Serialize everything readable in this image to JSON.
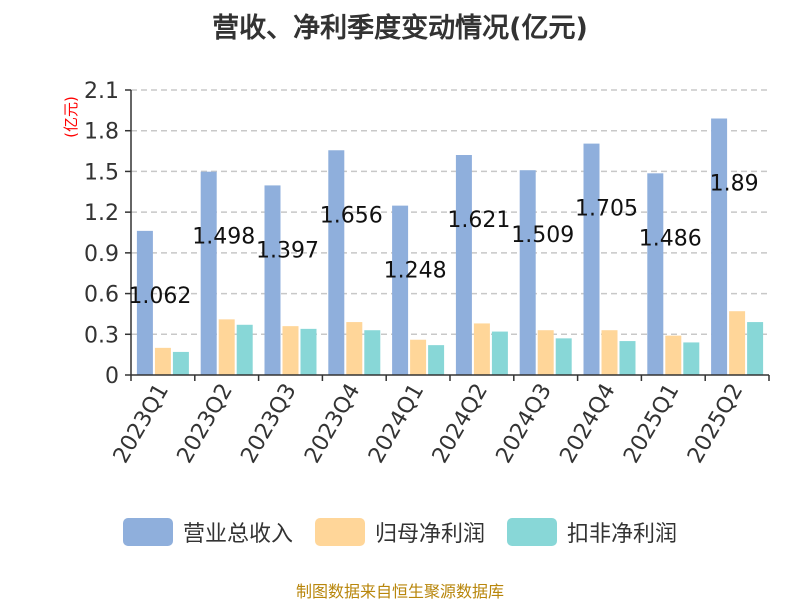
{
  "chart_data": {
    "type": "bar",
    "title": "营收、净利季度变动情况(亿元)",
    "ylabel": "(亿元)",
    "xlabel": "",
    "categories": [
      "2023Q1",
      "2023Q2",
      "2023Q3",
      "2023Q4",
      "2024Q1",
      "2024Q2",
      "2024Q3",
      "2024Q4",
      "2025Q1",
      "2025Q2"
    ],
    "ylim": [
      0,
      2.1
    ],
    "yticks": [
      "0",
      "0.3",
      "0.6",
      "0.9",
      "1.2",
      "1.5",
      "1.8",
      "2.1"
    ],
    "grid": true,
    "legend_position": "bottom",
    "series": [
      {
        "name": "营业总收入",
        "color": "#8fafdc",
        "values": [
          1.062,
          1.498,
          1.397,
          1.656,
          1.248,
          1.621,
          1.509,
          1.705,
          1.486,
          1.89
        ],
        "labels": [
          "1.062",
          "1.498",
          "1.397",
          "1.656",
          "1.248",
          "1.621",
          "1.509",
          "1.705",
          "1.486",
          "1.89"
        ]
      },
      {
        "name": "归母净利润",
        "color": "#ffd699",
        "values": [
          0.2,
          0.41,
          0.36,
          0.39,
          0.26,
          0.38,
          0.33,
          0.33,
          0.29,
          0.47
        ]
      },
      {
        "name": "扣非净利润",
        "color": "#88d7d7",
        "values": [
          0.17,
          0.37,
          0.34,
          0.33,
          0.22,
          0.32,
          0.27,
          0.25,
          0.24,
          0.39
        ]
      }
    ]
  },
  "source_note": "制图数据来自恒生聚源数据库",
  "colors": {
    "axis": "#333333",
    "grid": "#c8c8c8",
    "ylabel": "#ff0000"
  }
}
